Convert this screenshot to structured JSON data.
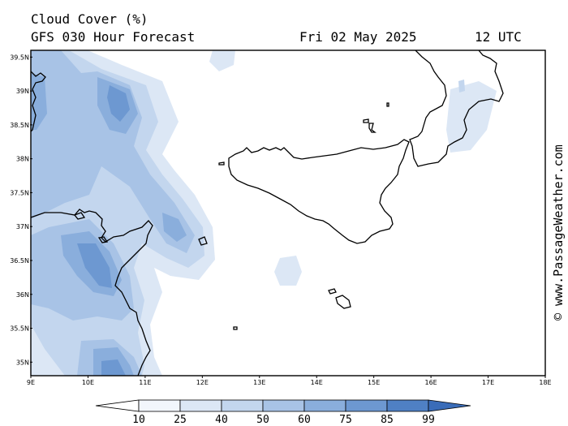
{
  "header": {
    "title": "Cloud Cover (%)",
    "subtitle": "GFS 030 Hour Forecast",
    "date": "Fri 02 May 2025",
    "time": "12 UTC"
  },
  "credit": "© www.PassageWeather.com",
  "map": {
    "lon_range": [
      9,
      18
    ],
    "lat_range": [
      34.8,
      39.6
    ],
    "lon_ticks": [
      "9E",
      "10E",
      "11E",
      "12E",
      "13E",
      "14E",
      "15E",
      "16E",
      "17E",
      "18E"
    ],
    "lat_ticks": [
      "39.5N",
      "39N",
      "38.5N",
      "38N",
      "37.5N",
      "37N",
      "36.5N",
      "36N",
      "35.5N",
      "35N"
    ],
    "colors": {
      "land_outline": "#000000",
      "background": "#ffffff",
      "frame": "#000000"
    }
  },
  "legend": {
    "levels": [
      "10",
      "25",
      "40",
      "50",
      "60",
      "75",
      "85",
      "99"
    ],
    "colors": [
      "#ffffff",
      "#f2f6fc",
      "#dce7f5",
      "#c3d6ee",
      "#a8c3e6",
      "#8aaedc",
      "#6d98d1",
      "#4f80c4",
      "#3a6cb8"
    ]
  }
}
